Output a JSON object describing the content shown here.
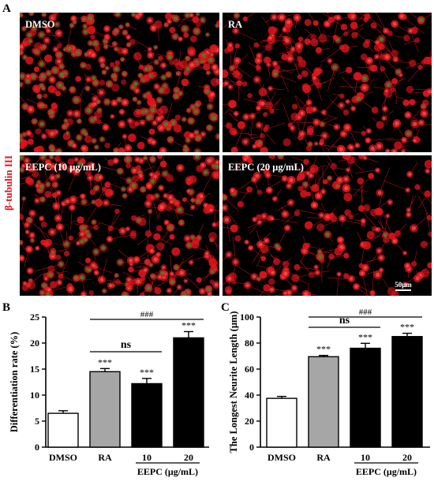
{
  "panels": {
    "a_letter": "A",
    "b_letter": "B",
    "c_letter": "C"
  },
  "micrographs": {
    "stain_label": "β-tubulin III",
    "scale_bar": "50μm",
    "images": [
      {
        "label": "DMSO",
        "green_density": 0.55,
        "cell_density": 0.9,
        "neurites": 0.15
      },
      {
        "label": "RA",
        "green_density": 0.05,
        "cell_density": 0.55,
        "neurites": 0.9
      },
      {
        "label": "EEPC (10 μg/mL)",
        "green_density": 0.35,
        "cell_density": 0.75,
        "neurites": 0.55
      },
      {
        "label": "EEPC (20 μg/mL)",
        "green_density": 0.05,
        "cell_density": 0.45,
        "neurites": 0.85
      }
    ]
  },
  "colors": {
    "cell_red": "#e0141c",
    "cell_green": "#3a8a2a",
    "background": "#000000",
    "bar_dmso": "#ffffff",
    "bar_ra": "#a6a6a6",
    "bar_eepc": "#000000"
  },
  "chart_data": [
    {
      "type": "bar",
      "panel": "B",
      "categories": [
        "DMSO",
        "RA",
        "10",
        "20"
      ],
      "group_label": "EEPC (μg/mL)",
      "values": [
        6.5,
        14.5,
        12.2,
        21.0
      ],
      "errors": [
        0.5,
        0.6,
        1.0,
        1.2
      ],
      "annotations": [
        "",
        "***",
        "***",
        "***"
      ],
      "ylabel": "Differentiation rate (%)",
      "ylim": [
        0,
        25
      ],
      "yticks": [
        0,
        5,
        10,
        15,
        20,
        25
      ],
      "brackets": [
        {
          "from": 1,
          "to": 2,
          "label": "ns"
        },
        {
          "from": 1,
          "to": 3,
          "label": "###"
        }
      ]
    },
    {
      "type": "bar",
      "panel": "C",
      "categories": [
        "DMSO",
        "RA",
        "10",
        "20"
      ],
      "group_label": "EEPC (μg/mL)",
      "values": [
        37.5,
        69.5,
        76.0,
        85.0
      ],
      "errors": [
        1.5,
        1.0,
        3.8,
        2.5
      ],
      "annotations": [
        "",
        "***",
        "***",
        "***"
      ],
      "ylabel": "The Longest Neurite Length (μm)",
      "ylim": [
        0,
        100
      ],
      "yticks": [
        0,
        20,
        40,
        60,
        80,
        100
      ],
      "brackets": [
        {
          "from": 1,
          "to": 2,
          "label": "ns"
        },
        {
          "from": 1,
          "to": 3,
          "label": "###"
        }
      ]
    }
  ]
}
